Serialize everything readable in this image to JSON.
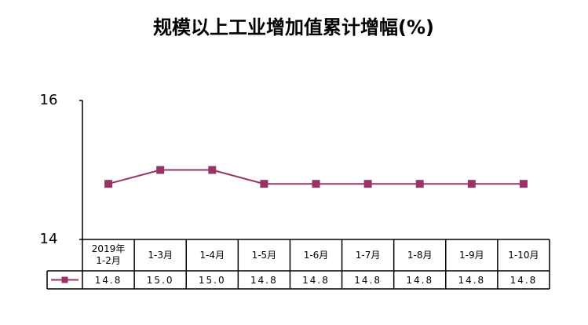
{
  "chart_data": {
    "type": "line",
    "title": "规模以上工业增加值累计增幅(%)",
    "categories": [
      "2019年\n1-2月",
      "1-3月",
      "1-4月",
      "1-5月",
      "1-6月",
      "1-7月",
      "1-8月",
      "1-9月",
      "1-10月"
    ],
    "series": [
      {
        "color": "#993366",
        "values": [
          14.8,
          15.0,
          15.0,
          14.8,
          14.8,
          14.8,
          14.8,
          14.8,
          14.8
        ],
        "value_labels": [
          "14.8",
          "15.0",
          "15.0",
          "14.8",
          "14.8",
          "14.8",
          "14.8",
          "14.8",
          "14.8"
        ]
      }
    ],
    "ylim": [
      14,
      16
    ],
    "yticks": [
      14,
      16
    ]
  }
}
